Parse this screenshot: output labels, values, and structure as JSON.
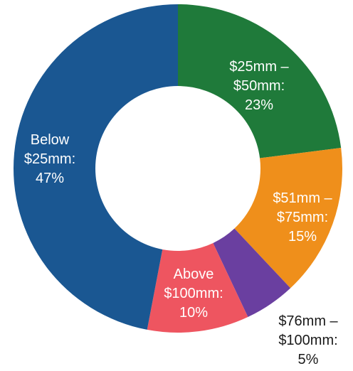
{
  "chart_data": {
    "type": "pie",
    "donut": true,
    "slices": [
      {
        "label_lines": [
          "$25mm –",
          "$50mm:",
          "23%"
        ],
        "value": 23,
        "color": "#1f7a3a"
      },
      {
        "label_lines": [
          "$51mm –",
          "$75mm:",
          "15%"
        ],
        "value": 15,
        "color": "#ef8f1b"
      },
      {
        "label_lines": [
          "$76mm –",
          "$100mm:",
          "5%"
        ],
        "value": 5,
        "color": "#6a3fa0"
      },
      {
        "label_lines": [
          "Above",
          "$100mm:",
          "10%"
        ],
        "value": 10,
        "color": "#ee5560"
      },
      {
        "label_lines": [
          "Below",
          "$25mm:",
          "47%"
        ],
        "value": 47,
        "color": "#1a5792"
      }
    ]
  }
}
